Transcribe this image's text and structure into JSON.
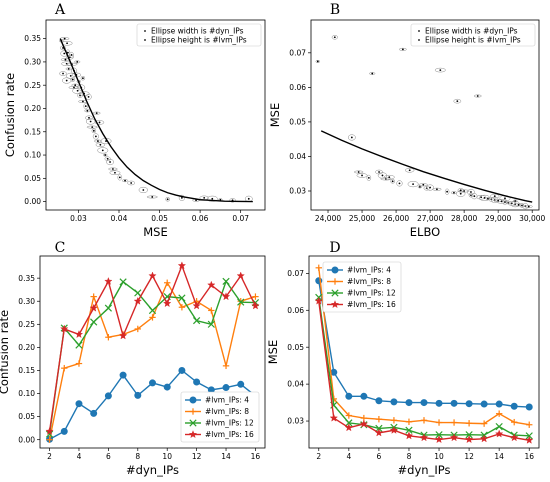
{
  "chart_data": [
    {
      "panel": "A",
      "type": "scatter",
      "xlabel": "MSE",
      "ylabel": "Confusion rate",
      "xlim": [
        0.022,
        0.076
      ],
      "ylim": [
        -0.018,
        0.39
      ],
      "xticks": [
        0.03,
        0.04,
        0.05,
        0.06,
        0.07
      ],
      "xticklabels": [
        "0.03",
        "0.04",
        "0.05",
        "0.06",
        "0.07"
      ],
      "yticks": [
        0.0,
        0.05,
        0.1,
        0.15,
        0.2,
        0.25,
        0.3,
        0.35
      ],
      "yticklabels": [
        "0.00",
        "0.05",
        "0.10",
        "0.15",
        "0.20",
        "0.25",
        "0.30",
        "0.35"
      ],
      "legend": [
        "Ellipse width is #dyn_IPs",
        "Ellipse height is #lvm_IPs"
      ],
      "legend_loc": "upper right",
      "points": [
        [
          0.0258,
          0.345
        ],
        [
          0.0262,
          0.33
        ],
        [
          0.0265,
          0.318
        ],
        [
          0.0268,
          0.305
        ],
        [
          0.0271,
          0.296
        ],
        [
          0.0274,
          0.32
        ],
        [
          0.0276,
          0.285
        ],
        [
          0.0279,
          0.31
        ],
        [
          0.0281,
          0.27
        ],
        [
          0.0284,
          0.295
        ],
        [
          0.0286,
          0.262
        ],
        [
          0.0289,
          0.281
        ],
        [
          0.0292,
          0.25
        ],
        [
          0.0295,
          0.272
        ],
        [
          0.0298,
          0.238
        ],
        [
          0.0301,
          0.258
        ],
        [
          0.0304,
          0.228
        ],
        [
          0.0307,
          0.245
        ],
        [
          0.0311,
          0.215
        ],
        [
          0.0314,
          0.232
        ],
        [
          0.0318,
          0.205
        ],
        [
          0.0322,
          0.195
        ],
        [
          0.0326,
          0.18
        ],
        [
          0.033,
          0.172
        ],
        [
          0.0334,
          0.16
        ],
        [
          0.0338,
          0.152
        ],
        [
          0.0343,
          0.14
        ],
        [
          0.0348,
          0.13
        ],
        [
          0.0354,
          0.122
        ],
        [
          0.036,
          0.11
        ],
        [
          0.0366,
          0.1
        ],
        [
          0.0372,
          0.092
        ],
        [
          0.0378,
          0.085
        ],
        [
          0.0385,
          0.07
        ],
        [
          0.039,
          0.062
        ],
        [
          0.0402,
          0.052
        ],
        [
          0.0415,
          0.045
        ],
        [
          0.043,
          0.04
        ],
        [
          0.046,
          0.025
        ],
        [
          0.0482,
          0.01
        ],
        [
          0.052,
          0.005
        ],
        [
          0.0555,
          0.008
        ],
        [
          0.059,
          0.003
        ],
        [
          0.061,
          0.008
        ],
        [
          0.063,
          0.006
        ],
        [
          0.065,
          0.004
        ],
        [
          0.068,
          0.003
        ],
        [
          0.072,
          0.006
        ],
        [
          0.0266,
          0.35
        ],
        [
          0.0272,
          0.34
        ],
        [
          0.0283,
          0.315
        ],
        [
          0.0297,
          0.3
        ],
        [
          0.0262,
          0.275
        ],
        [
          0.0271,
          0.26
        ],
        [
          0.0289,
          0.245
        ],
        [
          0.0311,
          0.265
        ],
        [
          0.0325,
          0.225
        ],
        [
          0.0345,
          0.19
        ],
        [
          0.0352,
          0.17
        ],
        [
          0.0368,
          0.13
        ]
      ],
      "fit_curve": [
        [
          0.0255,
          0.35
        ],
        [
          0.028,
          0.3
        ],
        [
          0.03,
          0.258
        ],
        [
          0.032,
          0.216
        ],
        [
          0.034,
          0.178
        ],
        [
          0.036,
          0.146
        ],
        [
          0.038,
          0.118
        ],
        [
          0.04,
          0.094
        ],
        [
          0.042,
          0.074
        ],
        [
          0.044,
          0.058
        ],
        [
          0.046,
          0.045
        ],
        [
          0.048,
          0.035
        ],
        [
          0.05,
          0.026
        ],
        [
          0.052,
          0.019
        ],
        [
          0.054,
          0.014
        ],
        [
          0.056,
          0.01
        ],
        [
          0.058,
          0.007
        ],
        [
          0.06,
          0.004
        ],
        [
          0.062,
          0.003
        ],
        [
          0.064,
          0.002
        ],
        [
          0.066,
          0.001
        ],
        [
          0.068,
          0.0007
        ],
        [
          0.07,
          0.0004
        ],
        [
          0.073,
          0.0002
        ]
      ]
    },
    {
      "panel": "B",
      "type": "scatter",
      "xlabel": "ELBO",
      "ylabel": "MSE",
      "xlim": [
        23500,
        30200
      ],
      "ylim": [
        0.0245,
        0.0795
      ],
      "xticks": [
        24000,
        25000,
        26000,
        27000,
        28000,
        29000,
        30000
      ],
      "xticklabels": [
        "24,000",
        "25,000",
        "26,000",
        "27,000",
        "28,000",
        "29,000",
        "30,000"
      ],
      "yticks": [
        0.03,
        0.04,
        0.05,
        0.06,
        0.07
      ],
      "yticklabels": [
        "0.03",
        "0.04",
        "0.05",
        "0.06",
        "0.07"
      ],
      "legend": [
        "Ellipse width is #dyn_IPs",
        "Ellipse height is #lvm_IPs"
      ],
      "legend_loc": "upper right",
      "points": [
        [
          23700,
          0.0675
        ],
        [
          24200,
          0.0745
        ],
        [
          24700,
          0.0455
        ],
        [
          24900,
          0.0355
        ],
        [
          25000,
          0.0345
        ],
        [
          25200,
          0.0338
        ],
        [
          25300,
          0.064
        ],
        [
          25500,
          0.0355
        ],
        [
          25600,
          0.0345
        ],
        [
          25700,
          0.0335
        ],
        [
          25900,
          0.0328
        ],
        [
          26100,
          0.0322
        ],
        [
          26200,
          0.071
        ],
        [
          26400,
          0.036
        ],
        [
          26500,
          0.032
        ],
        [
          26700,
          0.0312
        ],
        [
          26900,
          0.0308
        ],
        [
          27000,
          0.031
        ],
        [
          27200,
          0.0305
        ],
        [
          27300,
          0.065
        ],
        [
          27500,
          0.0298
        ],
        [
          27700,
          0.0295
        ],
        [
          27800,
          0.056
        ],
        [
          27900,
          0.0292
        ],
        [
          28000,
          0.03
        ],
        [
          28200,
          0.0288
        ],
        [
          28300,
          0.0285
        ],
        [
          28400,
          0.0575
        ],
        [
          28500,
          0.0282
        ],
        [
          28600,
          0.028
        ],
        [
          28700,
          0.0278
        ],
        [
          28800,
          0.0276
        ],
        [
          28900,
          0.0274
        ],
        [
          29000,
          0.0272
        ],
        [
          29100,
          0.027
        ],
        [
          29200,
          0.0268
        ],
        [
          29300,
          0.0266
        ],
        [
          29400,
          0.0264
        ],
        [
          29500,
          0.0262
        ],
        [
          29600,
          0.026
        ],
        [
          29700,
          0.0258
        ],
        [
          29800,
          0.0256
        ],
        [
          29900,
          0.0255
        ],
        [
          28900,
          0.0285
        ],
        [
          29200,
          0.0279
        ],
        [
          29500,
          0.0271
        ],
        [
          27900,
          0.0302
        ],
        [
          28200,
          0.0297
        ],
        [
          26800,
          0.0318
        ],
        [
          25800,
          0.034
        ]
      ],
      "fit_curve": [
        [
          23800,
          0.0474
        ],
        [
          24400,
          0.0447
        ],
        [
          25000,
          0.0422
        ],
        [
          25600,
          0.0399
        ],
        [
          26200,
          0.0377
        ],
        [
          26800,
          0.0356
        ],
        [
          27400,
          0.0337
        ],
        [
          28000,
          0.0319
        ],
        [
          28600,
          0.0302
        ],
        [
          29200,
          0.0286
        ],
        [
          29800,
          0.0272
        ],
        [
          30000,
          0.0268
        ]
      ]
    },
    {
      "panel": "C",
      "type": "line",
      "xlabel": "#dyn_IPs",
      "ylabel": "Confusion rate",
      "x": [
        2,
        3,
        4,
        5,
        6,
        7,
        8,
        9,
        10,
        11,
        12,
        13,
        14,
        15,
        16
      ],
      "xlim": [
        1.35,
        16.65
      ],
      "ylim": [
        -0.018,
        0.398
      ],
      "xticks": [
        2,
        4,
        6,
        8,
        10,
        12,
        14,
        16
      ],
      "xticklabels": [
        "2",
        "4",
        "6",
        "8",
        "10",
        "12",
        "14",
        "16"
      ],
      "yticks": [
        0.0,
        0.05,
        0.1,
        0.15,
        0.2,
        0.25,
        0.3,
        0.35
      ],
      "yticklabels": [
        "0.00",
        "0.05",
        "0.10",
        "0.15",
        "0.20",
        "0.25",
        "0.30",
        "0.35"
      ],
      "legend_loc": "lower right",
      "series": [
        {
          "name": "#lvm_IPs: 4",
          "color": "#1f77b4",
          "marker": "o",
          "values": [
            0.001,
            0.018,
            0.078,
            0.057,
            0.095,
            0.14,
            0.096,
            0.123,
            0.114,
            0.15,
            0.125,
            0.108,
            0.113,
            0.12,
            0.095
          ]
        },
        {
          "name": "#lvm_IPs: 8",
          "color": "#ff7f0e",
          "marker": "+",
          "values": [
            0.0,
            0.155,
            0.165,
            0.31,
            0.222,
            0.228,
            0.24,
            0.265,
            0.34,
            0.287,
            0.3,
            0.28,
            0.16,
            0.3,
            0.31
          ]
        },
        {
          "name": "#lvm_IPs: 12",
          "color": "#2ca02c",
          "marker": "x",
          "values": [
            0.012,
            0.242,
            0.205,
            0.255,
            0.285,
            0.342,
            0.318,
            0.28,
            0.31,
            0.307,
            0.258,
            0.25,
            0.343,
            0.298,
            0.297
          ]
        },
        {
          "name": "#lvm_IPs: 16",
          "color": "#d62728",
          "marker": "*",
          "values": [
            0.018,
            0.24,
            0.228,
            0.285,
            0.343,
            0.225,
            0.3,
            0.355,
            0.295,
            0.377,
            0.29,
            0.335,
            0.31,
            0.355,
            0.29
          ]
        }
      ]
    },
    {
      "panel": "D",
      "type": "line",
      "xlabel": "#dyn_IPs",
      "ylabel": "MSE",
      "x": [
        2,
        3,
        4,
        5,
        6,
        7,
        8,
        9,
        10,
        11,
        12,
        13,
        14,
        15,
        16
      ],
      "xlim": [
        1.35,
        16.65
      ],
      "ylim": [
        0.0227,
        0.0747
      ],
      "xticks": [
        2,
        4,
        6,
        8,
        10,
        12,
        14,
        16
      ],
      "xticklabels": [
        "2",
        "4",
        "6",
        "8",
        "10",
        "12",
        "14",
        "16"
      ],
      "yticks": [
        0.03,
        0.04,
        0.05,
        0.06,
        0.07
      ],
      "yticklabels": [
        "0.03",
        "0.04",
        "0.05",
        "0.06",
        "0.07"
      ],
      "legend_loc": "upper right",
      "series": [
        {
          "name": "#lvm_IPs: 4",
          "color": "#1f77b4",
          "marker": "o",
          "values": [
            0.068,
            0.0432,
            0.0367,
            0.0367,
            0.0355,
            0.0352,
            0.035,
            0.035,
            0.0348,
            0.0348,
            0.0347,
            0.0346,
            0.0346,
            0.034,
            0.0338
          ]
        },
        {
          "name": "#lvm_IPs: 8",
          "color": "#ff7f0e",
          "marker": "+",
          "values": [
            0.0715,
            0.036,
            0.0315,
            0.0308,
            0.0305,
            0.0302,
            0.0298,
            0.0302,
            0.0296,
            0.0296,
            0.0294,
            0.0293,
            0.032,
            0.0297,
            0.029
          ]
        },
        {
          "name": "#lvm_IPs: 12",
          "color": "#2ca02c",
          "marker": "x",
          "values": [
            0.0635,
            0.0343,
            0.0295,
            0.029,
            0.028,
            0.0283,
            0.0275,
            0.0262,
            0.0263,
            0.0262,
            0.0263,
            0.0262,
            0.0285,
            0.0262,
            0.026
          ]
        },
        {
          "name": "#lvm_IPs: 16",
          "color": "#d62728",
          "marker": "*",
          "values": [
            0.0625,
            0.0308,
            0.0282,
            0.0292,
            0.0268,
            0.0275,
            0.026,
            0.0255,
            0.025,
            0.0255,
            0.025,
            0.0252,
            0.0265,
            0.0255,
            0.0248
          ]
        }
      ]
    }
  ]
}
